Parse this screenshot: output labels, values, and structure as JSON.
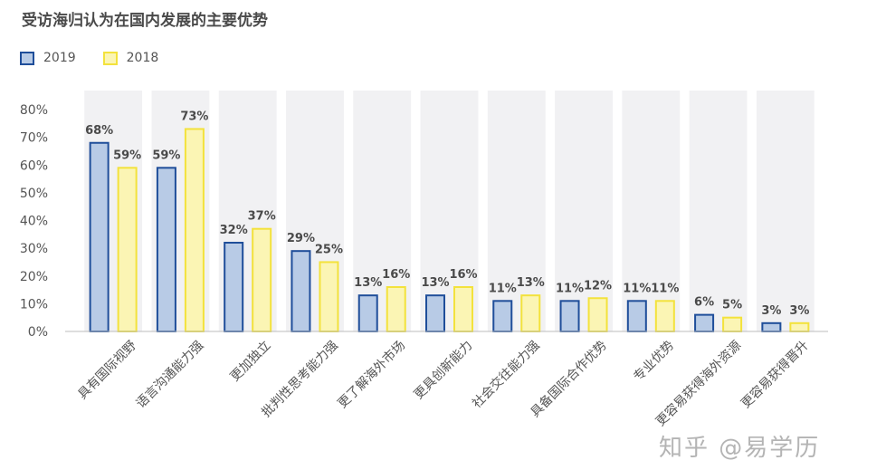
{
  "title": "受访海归认为在国内发展的主要优势",
  "watermark": "知乎 @易学历",
  "legend": {
    "s2019": "2019",
    "s2018": "2018"
  },
  "colors": {
    "fill_2019": "#b8cbe6",
    "stroke_2019": "#1f4e9a",
    "fill_2018": "#fbf5b4",
    "stroke_2018": "#f3e23c",
    "panel": "#f1f1f3",
    "label": "#4a4a4a"
  },
  "chart_data": {
    "type": "bar",
    "title": "受访海归认为在国内发展的主要优势",
    "categories": [
      "具有国际视野",
      "语言沟通能力强",
      "更加独立",
      "批判性思考能力强",
      "更了解海外市场",
      "更具创新能力",
      "社会交往能力强",
      "具备国际合作优势",
      "专业优势",
      "更容易获得海外资源",
      "更容易获得晋升"
    ],
    "series": [
      {
        "name": "2019",
        "values": [
          68,
          59,
          32,
          29,
          13,
          13,
          11,
          11,
          11,
          6,
          3
        ]
      },
      {
        "name": "2018",
        "values": [
          59,
          73,
          37,
          25,
          16,
          16,
          13,
          12,
          11,
          5,
          3
        ]
      }
    ],
    "ylim": [
      0,
      80
    ],
    "yticks": [
      "0%",
      "10%",
      "20%",
      "30%",
      "40%",
      "50%",
      "60%",
      "70%",
      "80%"
    ],
    "grid": false,
    "legend_position": "top-left"
  }
}
